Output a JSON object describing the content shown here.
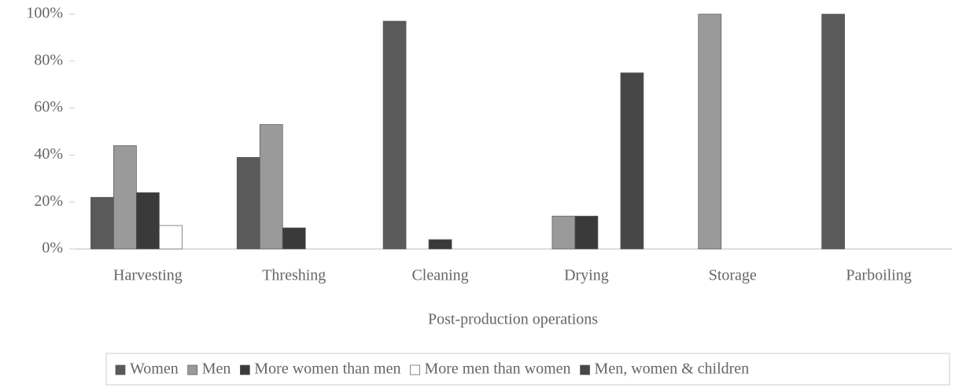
{
  "chart_data": {
    "type": "bar",
    "x_label": "Post-production operations",
    "categories": [
      "Harvesting",
      "Threshing",
      "Cleaning",
      "Drying",
      "Storage",
      "Parboiling"
    ],
    "series": [
      {
        "name": "Women",
        "color": "#5a5a5a",
        "values": [
          22,
          39,
          97,
          0,
          0,
          100
        ]
      },
      {
        "name": "Men",
        "color": "#9a9a9a",
        "values": [
          44,
          53,
          0,
          14,
          100,
          0
        ]
      },
      {
        "name": "More women than men",
        "color": "#3a3a3a",
        "values": [
          24,
          9,
          4,
          14,
          0,
          0
        ]
      },
      {
        "name": "More men than women",
        "color": "#ffffff",
        "values": [
          10,
          0,
          0,
          0,
          0,
          0
        ]
      },
      {
        "name": "Men, women & children",
        "color": "#474747",
        "values": [
          0,
          0,
          0,
          75,
          0,
          0
        ]
      }
    ],
    "ylim": [
      0,
      100
    ],
    "yticks": [
      {
        "value": 0,
        "label": "0%"
      },
      {
        "value": 20,
        "label": "20%"
      },
      {
        "value": 40,
        "label": "40%"
      },
      {
        "value": 60,
        "label": "60%"
      },
      {
        "value": 80,
        "label": "80%"
      },
      {
        "value": 100,
        "label": "100%"
      }
    ],
    "legend": "bottom"
  }
}
